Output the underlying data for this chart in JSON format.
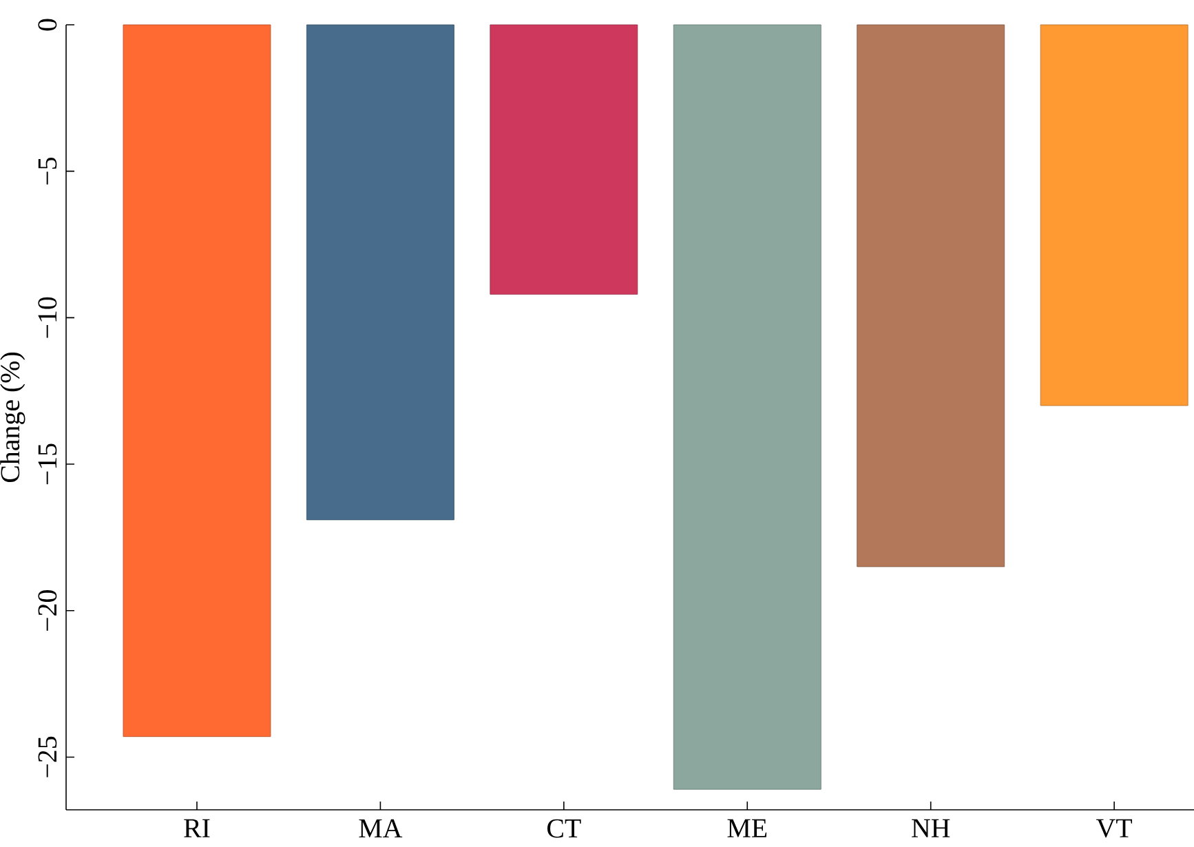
{
  "chart_data": {
    "type": "bar",
    "ylabel": "Change (%)",
    "categories": [
      "RI",
      "MA",
      "CT",
      "ME",
      "NH",
      "VT"
    ],
    "values": [
      -24.3,
      -16.9,
      -9.2,
      -26.1,
      -18.5,
      -13.0
    ],
    "colors": [
      "#ff6a33",
      "#486c8c",
      "#cf385d",
      "#8ca89e",
      "#b37859",
      "#ff9a33"
    ],
    "ylim": [
      -26.8,
      0
    ],
    "yticks": [
      {
        "value": -25,
        "label": "−25"
      },
      {
        "value": -20,
        "label": "−20"
      },
      {
        "value": -15,
        "label": "−15"
      },
      {
        "value": -10,
        "label": "−10"
      },
      {
        "value": -5,
        "label": "−5"
      },
      0
    ],
    "grid": false
  }
}
